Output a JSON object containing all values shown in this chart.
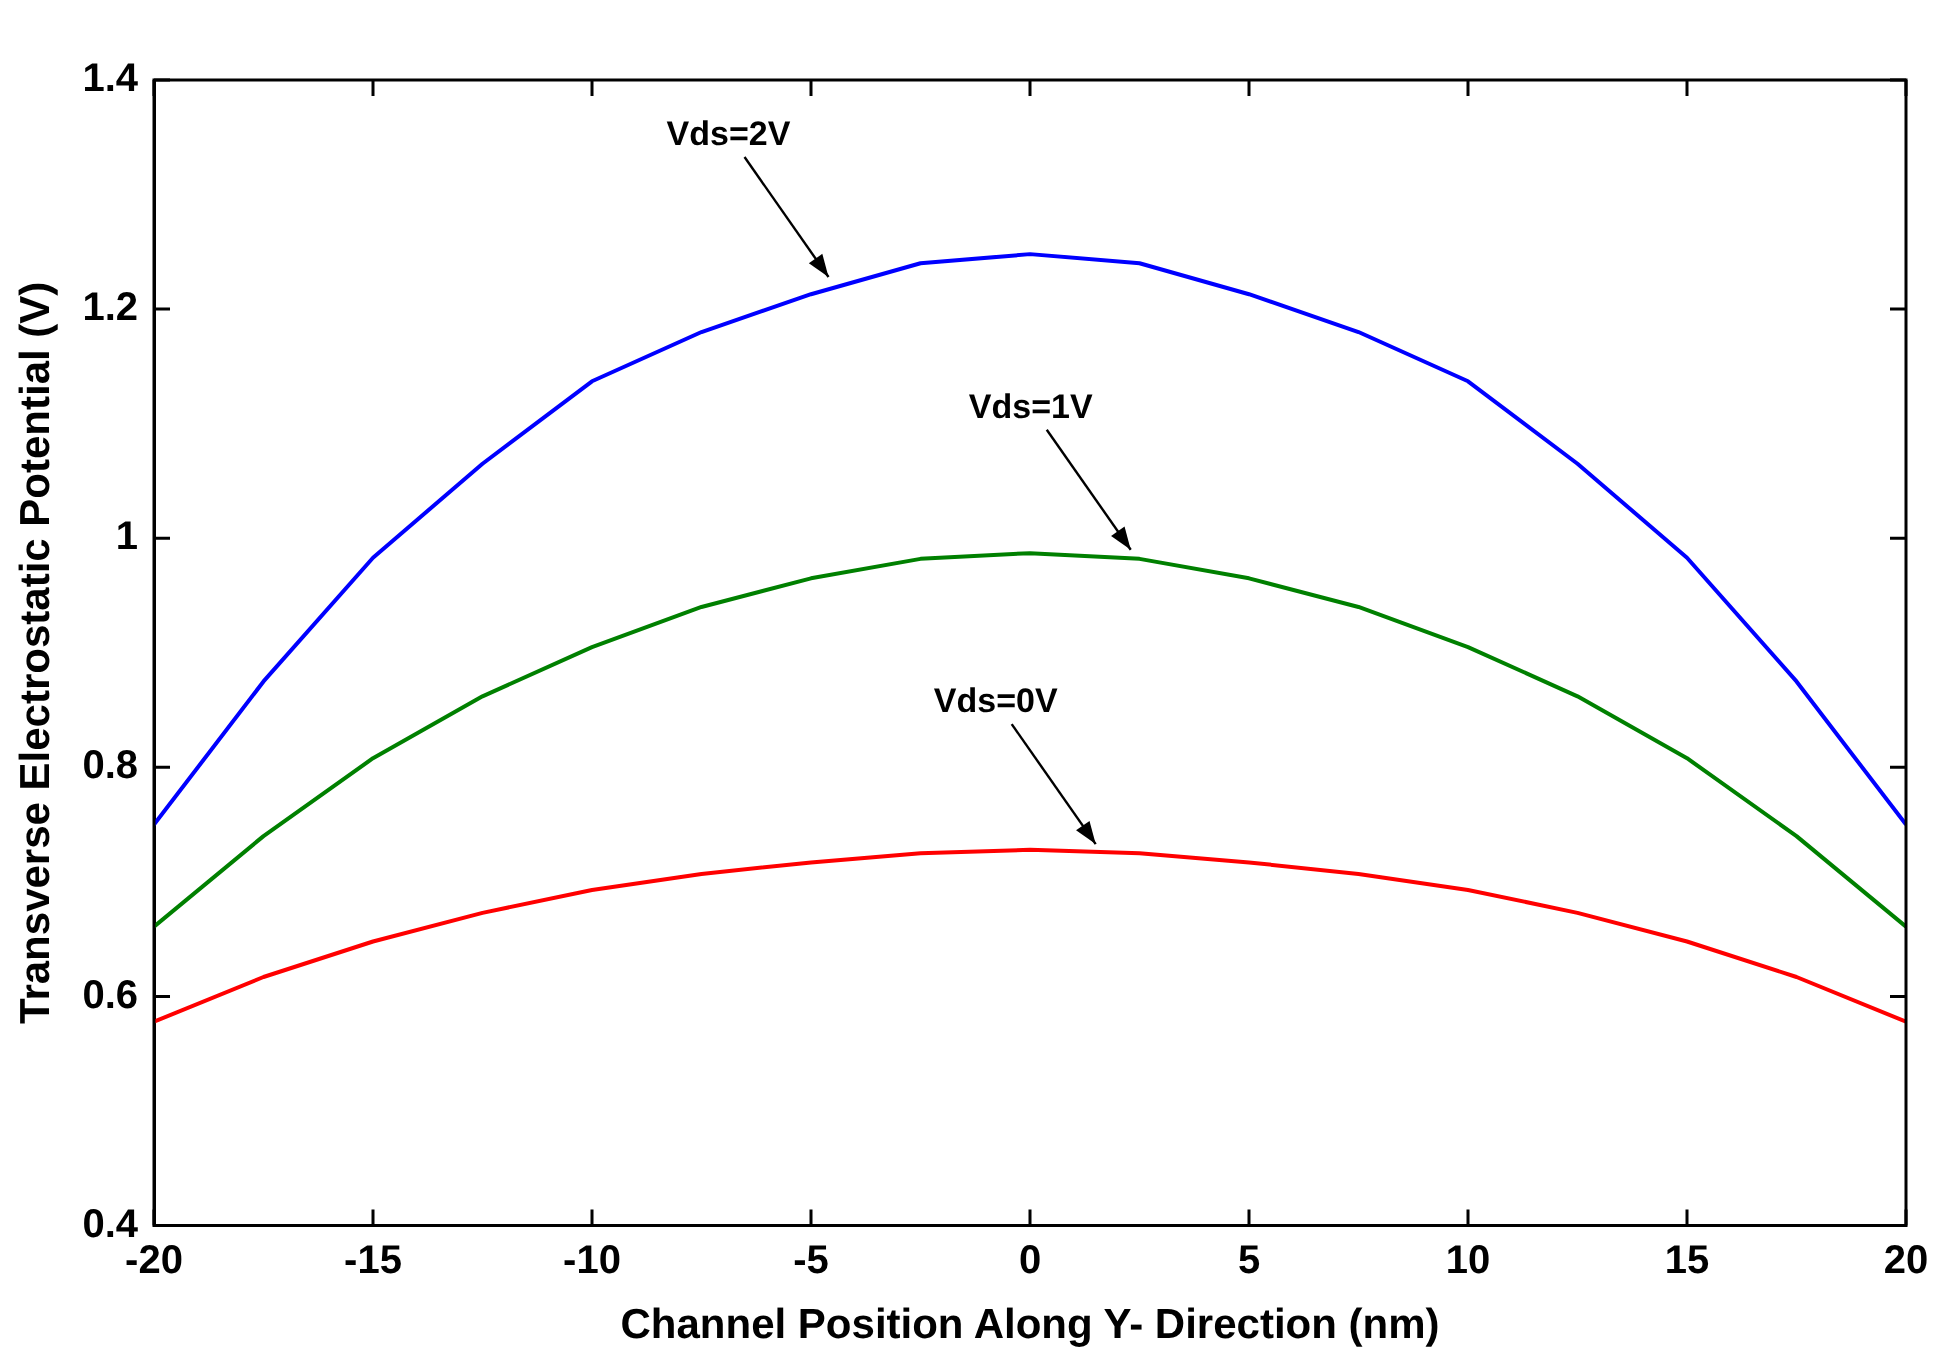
{
  "chart_data": {
    "type": "line",
    "xlabel": "Channel Position Along Y- Direction (nm)",
    "ylabel": "Transverse Electrostatic Potential (V)",
    "x": [
      -20,
      -17.5,
      -15,
      -12.5,
      -10,
      -7.5,
      -5,
      -2.5,
      0,
      2.5,
      5,
      7.5,
      10,
      12.5,
      15,
      17.5,
      20
    ],
    "series": [
      {
        "color": "#0000ff",
        "values": [
          0.75,
          0.875,
          0.983,
          1.065,
          1.137,
          1.18,
          1.213,
          1.24,
          1.248,
          1.24,
          1.213,
          1.18,
          1.137,
          1.065,
          0.983,
          0.875,
          0.75
        ]
      },
      {
        "color": "#008000",
        "values": [
          0.661,
          0.74,
          0.808,
          0.862,
          0.905,
          0.94,
          0.965,
          0.982,
          0.987,
          0.982,
          0.965,
          0.94,
          0.905,
          0.862,
          0.808,
          0.74,
          0.661
        ]
      },
      {
        "color": "#ff0000",
        "values": [
          0.578,
          0.617,
          0.648,
          0.673,
          0.693,
          0.707,
          0.717,
          0.725,
          0.728,
          0.725,
          0.717,
          0.707,
          0.693,
          0.673,
          0.648,
          0.617,
          0.578
        ]
      }
    ],
    "xlim": [
      -20,
      20
    ],
    "xticks": [
      -20,
      -15,
      -10,
      -5,
      0,
      5,
      10,
      15,
      20
    ],
    "ylim": [
      0.4,
      1.4
    ],
    "yticks": [
      0.4,
      0.6,
      0.8,
      1,
      1.2,
      1.4
    ],
    "annotations": [
      {
        "text": "Vds=2V",
        "x": -4.6,
        "y": 1.228
      },
      {
        "text": "Vds=1V",
        "x": 2.3,
        "y": 0.99
      },
      {
        "text": "Vds=0V",
        "x": 1.5,
        "y": 0.733
      }
    ],
    "grid": false,
    "legend": false,
    "marker": "none",
    "line_style": "solid"
  }
}
